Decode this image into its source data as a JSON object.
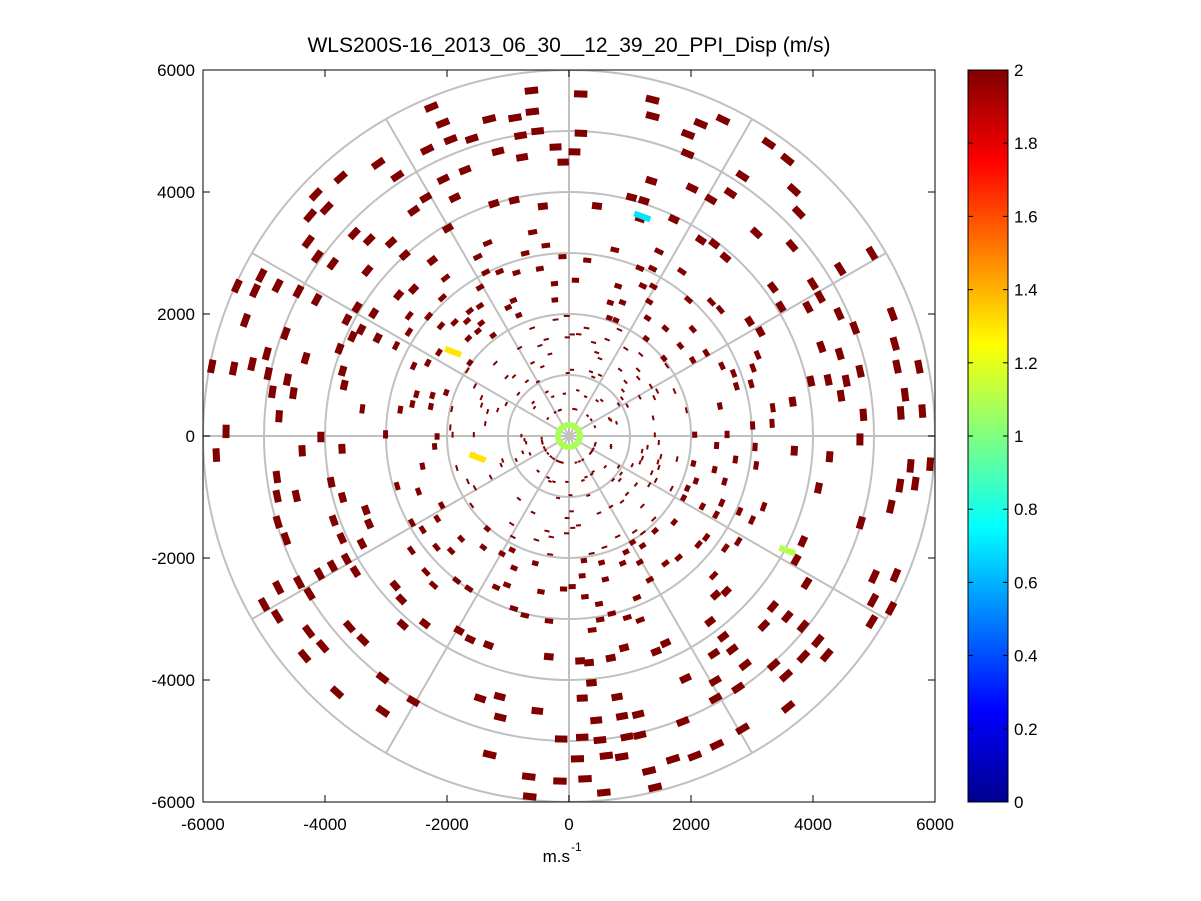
{
  "chart_data": {
    "type": "scatter",
    "plot_style": "polar PPI",
    "title": "WLS200S-16_2013_06_30__12_39_20_PPI_Disp (m/s)",
    "xlabel_main": "m.s",
    "xlabel_superscript": "-1",
    "ylabel": "",
    "xlim": [
      -6000,
      6000
    ],
    "ylim": [
      -6000,
      6000
    ],
    "xticks": [
      "-6000",
      "-4000",
      "-2000",
      "0",
      "2000",
      "4000",
      "6000"
    ],
    "yticks": [
      "6000",
      "4000",
      "2000",
      "0",
      "-2000",
      "-4000",
      "-6000"
    ],
    "xtick_values": [
      -6000,
      -4000,
      -2000,
      0,
      2000,
      4000,
      6000
    ],
    "ytick_values": [
      6000,
      4000,
      2000,
      0,
      -2000,
      -4000,
      -6000
    ],
    "range_rings": [
      1000,
      2000,
      3000,
      4000,
      5000,
      6000
    ],
    "radial_spokes_deg": [
      0,
      30,
      60,
      90,
      120,
      150,
      180,
      210,
      240,
      270,
      300,
      330
    ],
    "colorbar": {
      "min": 0,
      "max": 2,
      "ticks": [
        "0",
        "0.2",
        "0.4",
        "0.6",
        "0.8",
        "1",
        "1.2",
        "1.4",
        "1.6",
        "1.8",
        "2"
      ],
      "tick_values": [
        0,
        0.2,
        0.4,
        0.6,
        0.8,
        1,
        1.2,
        1.4,
        1.6,
        1.8,
        2
      ],
      "colormap": "jet"
    },
    "colors": {
      "dominant": "#800000",
      "grid": "#c0c0c0",
      "cyan": "#00ffee",
      "yellow": "#ffee00",
      "lightgreen": "#aaff55"
    },
    "notes": "Polar display: dispersion values plotted as short arc-segments along range gates; nearly all values saturate at 2 (dark red), a few near 0.7 (cyan), ~1.3 (yellow) and ~1.1 (light green)."
  }
}
